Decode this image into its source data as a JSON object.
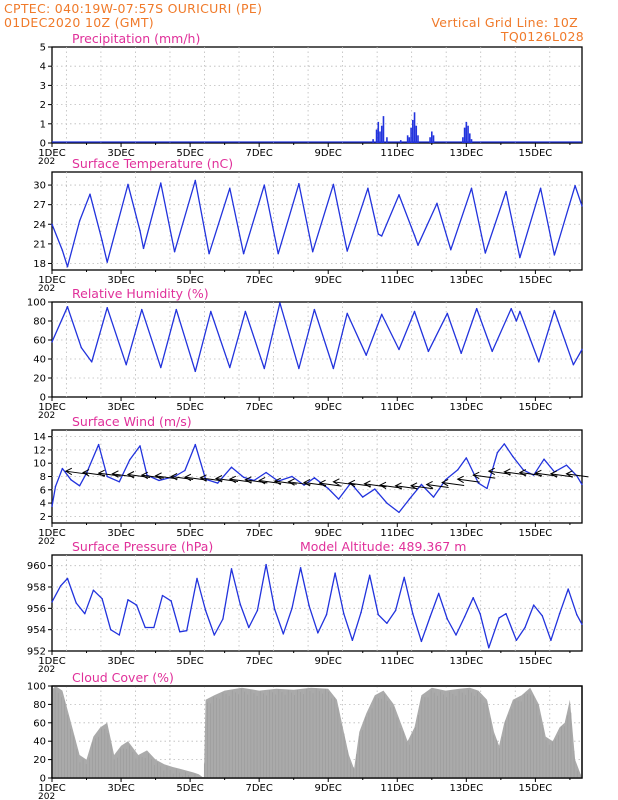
{
  "header": {
    "line1_left": "CPTEC:   040:19W-07:57S   OURICURI (PE)",
    "line2_left": "01DEC2020 10Z (GMT)",
    "line1_right": "Vertical Grid Line: 10Z",
    "line2_right": "TQ0126L028"
  },
  "style": {
    "header_color": "#f07a2a",
    "panel_title_color": "#e0309a",
    "series_color": "#2233dd",
    "cloud_color": "#aaaaaa",
    "gridline_style": "dotted gray"
  },
  "x_axis": {
    "tick_labels": [
      "1DEC",
      "3DEC",
      "5DEC",
      "7DEC",
      "9DEC",
      "11DEC",
      "13DEC",
      "15DEC"
    ],
    "year_fragment": "202"
  },
  "panels": [
    {
      "id": "precip",
      "title": "Precipitation (mm/h)",
      "extra": "",
      "yticks": [
        "0",
        "1",
        "2",
        "3",
        "4",
        "5"
      ]
    },
    {
      "id": "temp",
      "title": "Surface Temperature (nC)",
      "extra": "",
      "yticks": [
        "18",
        "21",
        "24",
        "27",
        "30"
      ]
    },
    {
      "id": "rh",
      "title": "Relative Humidity (%)",
      "extra": "",
      "yticks": [
        "0",
        "20",
        "40",
        "60",
        "80",
        "100"
      ]
    },
    {
      "id": "wind",
      "title": "Surface Wind (m/s)",
      "extra": "",
      "yticks": [
        "2",
        "4",
        "6",
        "8",
        "10",
        "12",
        "14"
      ]
    },
    {
      "id": "pres",
      "title": "Surface Pressure (hPa)",
      "extra": "Model Altitude: 489.367 m",
      "yticks": [
        "952",
        "954",
        "956",
        "958",
        "960"
      ]
    },
    {
      "id": "cloud",
      "title": "Cloud Cover (%)",
      "extra": "",
      "yticks": [
        "0",
        "20",
        "40",
        "60",
        "80",
        "100"
      ]
    }
  ],
  "chart_data": [
    {
      "type": "bar",
      "title": "Precipitation (mm/h)",
      "ylim": [
        0,
        5
      ],
      "x_unit": "days since 01DEC2020 00Z",
      "bars": [
        [
          9.3,
          0.2
        ],
        [
          9.4,
          0.7
        ],
        [
          9.45,
          1.1
        ],
        [
          9.5,
          0.6
        ],
        [
          9.55,
          0.9
        ],
        [
          9.6,
          1.4
        ],
        [
          9.7,
          0.3
        ],
        [
          10.1,
          0.15
        ],
        [
          10.3,
          0.4
        ],
        [
          10.35,
          0.3
        ],
        [
          10.4,
          0.8
        ],
        [
          10.45,
          1.2
        ],
        [
          10.5,
          1.6
        ],
        [
          10.55,
          0.9
        ],
        [
          10.6,
          0.4
        ],
        [
          10.95,
          0.3
        ],
        [
          11.0,
          0.6
        ],
        [
          11.05,
          0.4
        ],
        [
          11.9,
          0.3
        ],
        [
          11.95,
          0.8
        ],
        [
          12.0,
          1.1
        ],
        [
          12.05,
          0.9
        ],
        [
          12.1,
          0.5
        ],
        [
          12.15,
          0.2
        ]
      ]
    },
    {
      "type": "line",
      "title": "Surface Temperature (nC)",
      "ylim": [
        17,
        32
      ],
      "x_unit": "days since 01DEC2020 00Z",
      "points": [
        [
          0,
          24.0
        ],
        [
          0.3,
          20.0
        ],
        [
          0.45,
          17.5
        ],
        [
          0.8,
          24.5
        ],
        [
          1.1,
          28.6
        ],
        [
          1.45,
          21.5
        ],
        [
          1.6,
          18.2
        ],
        [
          2.2,
          30.1
        ],
        [
          2.55,
          23.0
        ],
        [
          2.65,
          20.3
        ],
        [
          3.15,
          30.3
        ],
        [
          3.55,
          19.8
        ],
        [
          4.15,
          30.7
        ],
        [
          4.55,
          19.5
        ],
        [
          5.15,
          29.5
        ],
        [
          5.55,
          19.5
        ],
        [
          6.15,
          30.0
        ],
        [
          6.55,
          19.5
        ],
        [
          7.15,
          30.2
        ],
        [
          7.55,
          19.8
        ],
        [
          8.15,
          30.1
        ],
        [
          8.55,
          19.9
        ],
        [
          9.15,
          29.5
        ],
        [
          9.45,
          22.5
        ],
        [
          9.55,
          22.2
        ],
        [
          10.05,
          28.5
        ],
        [
          10.5,
          22.3
        ],
        [
          10.6,
          20.8
        ],
        [
          11.15,
          27.2
        ],
        [
          11.55,
          20.1
        ],
        [
          12.15,
          29.5
        ],
        [
          12.55,
          19.6
        ],
        [
          13.15,
          29.0
        ],
        [
          13.55,
          18.9
        ],
        [
          14.15,
          29.5
        ],
        [
          14.55,
          19.3
        ],
        [
          15.15,
          29.9
        ],
        [
          15.35,
          26.8
        ]
      ]
    },
    {
      "type": "line",
      "title": "Relative Humidity (%)",
      "ylim": [
        0,
        100
      ],
      "x_unit": "days since 01DEC2020 00Z",
      "points": [
        [
          0,
          58
        ],
        [
          0.45,
          95
        ],
        [
          0.85,
          52
        ],
        [
          1.15,
          37
        ],
        [
          1.6,
          94
        ],
        [
          2.15,
          34
        ],
        [
          2.6,
          92
        ],
        [
          3.15,
          31
        ],
        [
          3.6,
          92
        ],
        [
          4.15,
          27
        ],
        [
          4.6,
          90
        ],
        [
          5.15,
          31
        ],
        [
          5.6,
          90
        ],
        [
          6.15,
          30
        ],
        [
          6.6,
          99
        ],
        [
          7.15,
          30
        ],
        [
          7.6,
          92
        ],
        [
          8.15,
          30
        ],
        [
          8.55,
          88
        ],
        [
          9.1,
          44
        ],
        [
          9.55,
          87
        ],
        [
          10.05,
          50
        ],
        [
          10.5,
          90
        ],
        [
          10.9,
          48
        ],
        [
          11.45,
          88
        ],
        [
          11.85,
          46
        ],
        [
          12.3,
          93
        ],
        [
          12.75,
          48
        ],
        [
          13.3,
          93
        ],
        [
          13.45,
          80
        ],
        [
          13.55,
          90
        ],
        [
          14.1,
          37
        ],
        [
          14.55,
          91
        ],
        [
          15.1,
          34
        ],
        [
          15.35,
          50
        ]
      ]
    },
    {
      "type": "line",
      "title": "Surface Wind (m/s)",
      "ylim": [
        1,
        15
      ],
      "x_unit": "days since 01DEC2020 00Z",
      "points": [
        [
          0,
          3.5
        ],
        [
          0.1,
          6.5
        ],
        [
          0.3,
          9.2
        ],
        [
          0.55,
          7.5
        ],
        [
          0.8,
          6.6
        ],
        [
          1.0,
          8.5
        ],
        [
          1.35,
          12.8
        ],
        [
          1.6,
          8.0
        ],
        [
          1.95,
          7.2
        ],
        [
          2.25,
          10.5
        ],
        [
          2.55,
          12.6
        ],
        [
          2.75,
          8.2
        ],
        [
          3.1,
          7.4
        ],
        [
          3.55,
          8.0
        ],
        [
          3.85,
          8.9
        ],
        [
          4.15,
          12.8
        ],
        [
          4.45,
          7.6
        ],
        [
          4.8,
          7.0
        ],
        [
          5.2,
          9.4
        ],
        [
          5.55,
          7.9
        ],
        [
          5.85,
          7.4
        ],
        [
          6.2,
          8.6
        ],
        [
          6.55,
          7.3
        ],
        [
          6.95,
          8.0
        ],
        [
          7.3,
          6.7
        ],
        [
          7.6,
          7.8
        ],
        [
          8.0,
          6.2
        ],
        [
          8.3,
          4.6
        ],
        [
          8.65,
          7.0
        ],
        [
          9.0,
          4.9
        ],
        [
          9.35,
          6.1
        ],
        [
          9.7,
          4.0
        ],
        [
          10.05,
          2.6
        ],
        [
          10.35,
          4.6
        ],
        [
          10.7,
          6.8
        ],
        [
          11.05,
          4.9
        ],
        [
          11.4,
          7.5
        ],
        [
          11.75,
          9.0
        ],
        [
          12.0,
          10.8
        ],
        [
          12.35,
          7.0
        ],
        [
          12.6,
          6.2
        ],
        [
          12.9,
          11.6
        ],
        [
          13.1,
          12.9
        ],
        [
          13.35,
          11.0
        ],
        [
          13.65,
          9.0
        ],
        [
          13.95,
          8.2
        ],
        [
          14.25,
          10.6
        ],
        [
          14.55,
          8.7
        ],
        [
          14.9,
          9.7
        ],
        [
          15.2,
          8.1
        ],
        [
          15.35,
          6.8
        ]
      ],
      "arrows": [
        [
          0.4,
          8.8
        ],
        [
          0.9,
          8.6
        ],
        [
          1.35,
          8.5
        ],
        [
          1.75,
          8.4
        ],
        [
          2.2,
          8.3
        ],
        [
          2.6,
          8.2
        ],
        [
          3.0,
          8.1
        ],
        [
          3.45,
          8.0
        ],
        [
          3.85,
          7.9
        ],
        [
          4.3,
          7.8
        ],
        [
          4.75,
          7.7
        ],
        [
          5.15,
          7.6
        ],
        [
          5.6,
          7.5
        ],
        [
          6.0,
          7.4
        ],
        [
          6.45,
          7.3
        ],
        [
          6.85,
          7.2
        ],
        [
          7.3,
          7.1
        ],
        [
          7.75,
          7.0
        ],
        [
          8.15,
          7.2
        ],
        [
          8.6,
          7.0
        ],
        [
          9.05,
          6.9
        ],
        [
          9.5,
          6.7
        ],
        [
          9.95,
          6.6
        ],
        [
          10.4,
          6.6
        ],
        [
          10.85,
          6.8
        ],
        [
          11.3,
          7.1
        ],
        [
          11.75,
          7.6
        ],
        [
          12.2,
          8.2
        ],
        [
          12.65,
          8.8
        ],
        [
          13.1,
          8.7
        ],
        [
          13.55,
          8.6
        ],
        [
          14.0,
          8.5
        ],
        [
          14.45,
          8.4
        ],
        [
          14.9,
          8.4
        ]
      ]
    },
    {
      "type": "line",
      "title": "Surface Pressure (hPa)",
      "ylim": [
        952,
        961
      ],
      "x_unit": "days since 01DEC2020 00Z",
      "points": [
        [
          0,
          956.6
        ],
        [
          0.25,
          958.1
        ],
        [
          0.45,
          958.8
        ],
        [
          0.7,
          956.5
        ],
        [
          0.95,
          955.5
        ],
        [
          1.2,
          957.7
        ],
        [
          1.45,
          956.9
        ],
        [
          1.7,
          954.0
        ],
        [
          1.95,
          953.5
        ],
        [
          2.2,
          956.8
        ],
        [
          2.45,
          956.3
        ],
        [
          2.7,
          954.2
        ],
        [
          2.95,
          954.2
        ],
        [
          3.2,
          957.2
        ],
        [
          3.45,
          956.7
        ],
        [
          3.7,
          953.8
        ],
        [
          3.9,
          953.9
        ],
        [
          4.2,
          958.8
        ],
        [
          4.45,
          955.8
        ],
        [
          4.7,
          953.5
        ],
        [
          4.95,
          955.0
        ],
        [
          5.2,
          959.7
        ],
        [
          5.45,
          956.4
        ],
        [
          5.7,
          954.2
        ],
        [
          5.95,
          955.8
        ],
        [
          6.2,
          960.1
        ],
        [
          6.45,
          955.9
        ],
        [
          6.7,
          953.6
        ],
        [
          6.95,
          956.0
        ],
        [
          7.2,
          959.8
        ],
        [
          7.45,
          956.2
        ],
        [
          7.7,
          953.7
        ],
        [
          7.95,
          955.4
        ],
        [
          8.2,
          959.3
        ],
        [
          8.45,
          955.5
        ],
        [
          8.7,
          953.0
        ],
        [
          8.95,
          955.6
        ],
        [
          9.2,
          959.1
        ],
        [
          9.45,
          955.4
        ],
        [
          9.7,
          954.6
        ],
        [
          9.95,
          955.8
        ],
        [
          10.2,
          958.9
        ],
        [
          10.45,
          955.5
        ],
        [
          10.7,
          952.9
        ],
        [
          10.95,
          955.2
        ],
        [
          11.2,
          957.4
        ],
        [
          11.45,
          955.0
        ],
        [
          11.7,
          953.5
        ],
        [
          11.95,
          955.2
        ],
        [
          12.2,
          957.0
        ],
        [
          12.4,
          955.5
        ],
        [
          12.65,
          952.3
        ],
        [
          12.95,
          955.1
        ],
        [
          13.15,
          955.5
        ],
        [
          13.45,
          953.0
        ],
        [
          13.7,
          954.2
        ],
        [
          13.95,
          956.3
        ],
        [
          14.2,
          955.3
        ],
        [
          14.45,
          953.0
        ],
        [
          14.7,
          955.5
        ],
        [
          14.95,
          957.8
        ],
        [
          15.2,
          955.4
        ],
        [
          15.35,
          954.5
        ]
      ]
    },
    {
      "type": "area",
      "title": "Cloud Cover (%)",
      "ylim": [
        0,
        100
      ],
      "x_unit": "days since 01DEC2020 00Z",
      "points": [
        [
          0,
          96
        ],
        [
          0.1,
          100
        ],
        [
          0.3,
          95
        ],
        [
          0.55,
          60
        ],
        [
          0.8,
          25
        ],
        [
          1.0,
          20
        ],
        [
          1.2,
          45
        ],
        [
          1.4,
          55
        ],
        [
          1.6,
          60
        ],
        [
          1.8,
          25
        ],
        [
          2.0,
          35
        ],
        [
          2.2,
          40
        ],
        [
          2.5,
          25
        ],
        [
          2.75,
          30
        ],
        [
          3.0,
          20
        ],
        [
          3.25,
          15
        ],
        [
          3.5,
          12
        ],
        [
          3.7,
          10
        ],
        [
          3.9,
          8
        ],
        [
          4.1,
          6
        ],
        [
          4.25,
          4
        ],
        [
          4.4,
          0
        ],
        [
          4.45,
          85
        ],
        [
          4.7,
          90
        ],
        [
          5.0,
          95
        ],
        [
          5.5,
          98
        ],
        [
          6.0,
          95
        ],
        [
          6.5,
          97
        ],
        [
          7.0,
          96
        ],
        [
          7.5,
          98
        ],
        [
          8.0,
          97
        ],
        [
          8.25,
          85
        ],
        [
          8.45,
          50
        ],
        [
          8.6,
          25
        ],
        [
          8.75,
          10
        ],
        [
          8.9,
          50
        ],
        [
          9.1,
          70
        ],
        [
          9.35,
          90
        ],
        [
          9.6,
          95
        ],
        [
          9.9,
          80
        ],
        [
          10.1,
          60
        ],
        [
          10.3,
          40
        ],
        [
          10.5,
          55
        ],
        [
          10.7,
          90
        ],
        [
          11.0,
          98
        ],
        [
          11.4,
          95
        ],
        [
          11.8,
          97
        ],
        [
          12.1,
          98
        ],
        [
          12.35,
          95
        ],
        [
          12.6,
          85
        ],
        [
          12.8,
          50
        ],
        [
          12.95,
          35
        ],
        [
          13.1,
          60
        ],
        [
          13.35,
          85
        ],
        [
          13.6,
          90
        ],
        [
          13.85,
          98
        ],
        [
          14.1,
          80
        ],
        [
          14.3,
          45
        ],
        [
          14.5,
          40
        ],
        [
          14.7,
          55
        ],
        [
          14.85,
          60
        ],
        [
          15.0,
          85
        ],
        [
          15.15,
          20
        ],
        [
          15.3,
          5
        ],
        [
          15.35,
          0
        ]
      ]
    }
  ]
}
